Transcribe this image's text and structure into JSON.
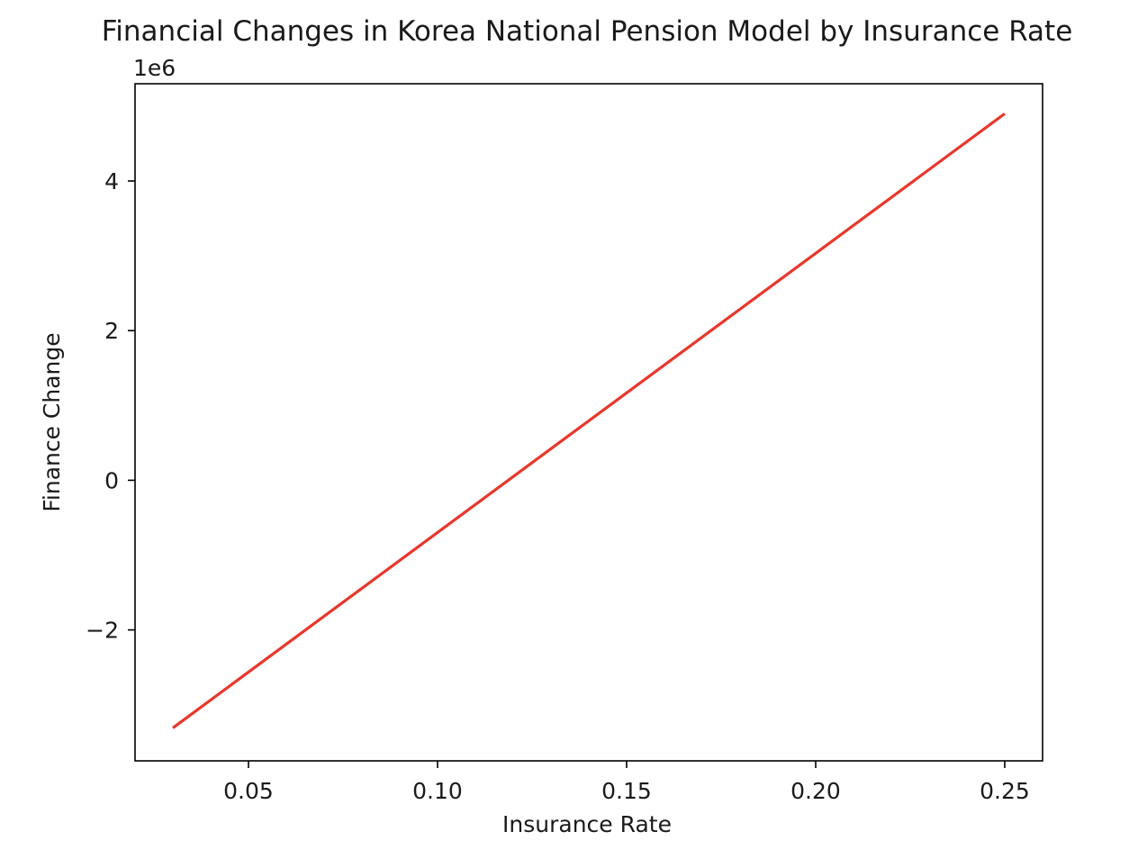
{
  "chart_data": {
    "type": "line",
    "title": "Financial Changes in Korea National Pension Model by Insurance Rate",
    "xlabel": "Insurance Rate",
    "ylabel": "Finance Change",
    "y_offset_label": "1e6",
    "xlim": [
      0.02,
      0.26
    ],
    "ylim": [
      -3.75,
      5.3
    ],
    "x_ticks": [
      0.05,
      0.1,
      0.15,
      0.2,
      0.25
    ],
    "x_tick_labels": [
      "0.05",
      "0.10",
      "0.15",
      "0.20",
      "0.25"
    ],
    "y_ticks": [
      -2,
      0,
      2,
      4
    ],
    "y_tick_labels": [
      "−2",
      "0",
      "2",
      "4"
    ],
    "grid": false,
    "series": [
      {
        "color": "#e8372c",
        "x": [
          0.03,
          0.25
        ],
        "y": [
          -3.31,
          4.9
        ]
      }
    ]
  }
}
